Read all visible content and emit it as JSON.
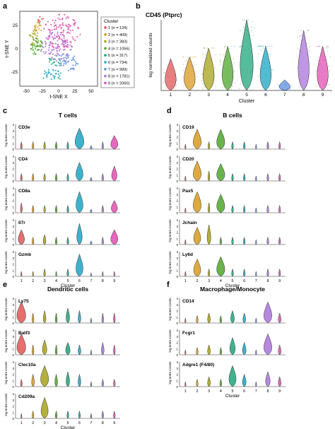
{
  "panel_letters": {
    "a": "a",
    "b": "b",
    "c": "c",
    "d": "d",
    "e": "e",
    "f": "f"
  },
  "colors": [
    "#e05555",
    "#d99a1e",
    "#a7a21a",
    "#4ea72c",
    "#1ea57a",
    "#1aa6c4",
    "#5b8fe0",
    "#a974d8",
    "#e14fb3"
  ],
  "chart_data": [
    {
      "type": "scatter",
      "panel": "a",
      "xlabel": "t-SNE X",
      "ylabel": "t-SNE Y",
      "xticks": [
        "-50",
        "-25",
        "0",
        "25",
        "50"
      ],
      "yticks": [
        "25",
        "0",
        "-25"
      ],
      "legend": {
        "title": "Cluster",
        "placement": "right",
        "entries": [
          "1 (n = 124)",
          "2 (n = 409)",
          "3 (n = 383)",
          "4 (n = 1056)",
          "5 (n = 317)",
          "6 (n = 734)",
          "7 (n = 999)",
          "8 (n = 1781)",
          "9 (n = 2060)"
        ]
      },
      "clusters": [
        {
          "name": "1",
          "cx": -28,
          "cy": 30,
          "sx": 3,
          "sy": 3,
          "n": 8
        },
        {
          "name": "2",
          "cx": -33,
          "cy": 22,
          "sx": 4,
          "sy": 4,
          "n": 18
        },
        {
          "name": "3",
          "cx": -38,
          "cy": 12,
          "sx": 5,
          "sy": 5,
          "n": 18
        },
        {
          "name": "4",
          "cx": -34,
          "cy": 2,
          "sx": 6,
          "sy": 6,
          "n": 40
        },
        {
          "name": "5",
          "cx": -5,
          "cy": -12,
          "sx": 6,
          "sy": 4,
          "n": 18
        },
        {
          "name": "6",
          "cx": -10,
          "cy": -28,
          "sx": 10,
          "sy": 4,
          "n": 30
        },
        {
          "name": "7",
          "cx": 15,
          "cy": -14,
          "sx": 10,
          "sy": 6,
          "n": 40
        },
        {
          "name": "8",
          "cx": -3,
          "cy": 2,
          "sx": 15,
          "sy": 10,
          "n": 90
        },
        {
          "name": "9",
          "cx": 5,
          "cy": 18,
          "sx": 18,
          "sy": 12,
          "n": 110
        }
      ]
    },
    {
      "type": "violin",
      "panel": "b",
      "title": "CD45 (Ptprc)",
      "xlabel": "Cluster",
      "ylabel": "log normalized counts",
      "ylim": [
        0,
        4
      ],
      "categories": [
        "1",
        "2",
        "3",
        "4",
        "5",
        "6",
        "7",
        "8",
        "9"
      ],
      "series": [
        {
          "medians": [
            0.3,
            1.2,
            1.4,
            1.3,
            2.0,
            2.0,
            0.1,
            1.8,
            1.6
          ],
          "max": [
            1.8,
            1.9,
            2.4,
            2.5,
            4.0,
            2.5,
            0.6,
            3.4,
            2.5
          ]
        }
      ]
    },
    {
      "type": "violin-stack",
      "panel": "c",
      "title": "T cells",
      "xlabel": "Cluster",
      "ylabel": "log norm counts",
      "yticks": [
        "0",
        "1",
        "2",
        "3",
        "4"
      ],
      "categories": [
        "1",
        "2",
        "3",
        "4",
        "5",
        "6",
        "7",
        "8",
        "9"
      ],
      "genes": [
        {
          "name": "CD3e",
          "heights": [
            0.3,
            0.3,
            0.3,
            0.3,
            0.3,
            0.85,
            0.15,
            0.3,
            0.55
          ],
          "widths": [
            0.2,
            0.2,
            0.2,
            0.2,
            0.2,
            1.0,
            0.2,
            0.2,
            0.8
          ]
        },
        {
          "name": "CD4",
          "heights": [
            0.3,
            0.3,
            0.3,
            0.3,
            0.3,
            0.75,
            0.15,
            0.3,
            0.6
          ],
          "widths": [
            0.2,
            0.2,
            0.2,
            0.2,
            0.2,
            0.8,
            0.2,
            0.2,
            0.6
          ]
        },
        {
          "name": "CD8a",
          "heights": [
            0.4,
            0.3,
            0.3,
            0.3,
            0.3,
            0.85,
            0.15,
            0.3,
            0.5
          ],
          "widths": [
            0.2,
            0.2,
            0.2,
            0.2,
            0.2,
            0.8,
            0.2,
            0.2,
            0.7
          ]
        },
        {
          "name": "Il7r",
          "heights": [
            0.6,
            0.3,
            0.4,
            0.3,
            0.3,
            0.85,
            0.15,
            0.3,
            0.6
          ],
          "widths": [
            0.7,
            0.2,
            0.3,
            0.2,
            0.2,
            0.6,
            0.2,
            0.2,
            0.8
          ]
        },
        {
          "name": "Gzmb",
          "heights": [
            0.2,
            0.2,
            0.3,
            0.2,
            0.3,
            0.9,
            0.15,
            0.2,
            0.2
          ],
          "widths": [
            0.1,
            0.1,
            0.2,
            0.1,
            0.2,
            0.8,
            0.1,
            0.1,
            0.1
          ]
        }
      ]
    },
    {
      "type": "violin-stack",
      "panel": "d",
      "title": "B cells",
      "xlabel": "Cluster",
      "ylabel": "log norm counts",
      "yticks": [
        "0",
        "1",
        "2",
        "3",
        "4"
      ],
      "categories": [
        "1",
        "2",
        "3",
        "4",
        "5",
        "6",
        "7",
        "8",
        "9"
      ],
      "genes": [
        {
          "name": "CD19",
          "heights": [
            0.2,
            0.8,
            0.3,
            0.8,
            0.3,
            0.3,
            0.2,
            0.3,
            0.3
          ],
          "widths": [
            0.1,
            0.9,
            0.2,
            0.9,
            0.2,
            0.2,
            0.1,
            0.2,
            0.2
          ]
        },
        {
          "name": "CD20",
          "heights": [
            0.2,
            0.8,
            0.4,
            0.7,
            0.3,
            0.3,
            0.2,
            0.3,
            0.3
          ],
          "widths": [
            0.1,
            0.9,
            0.2,
            0.9,
            0.2,
            0.2,
            0.1,
            0.2,
            0.2
          ]
        },
        {
          "name": "Pax5",
          "heights": [
            0.2,
            0.85,
            0.4,
            0.75,
            0.3,
            0.3,
            0.2,
            0.3,
            0.3
          ],
          "widths": [
            0.1,
            0.9,
            0.2,
            0.9,
            0.2,
            0.2,
            0.1,
            0.2,
            0.2
          ]
        },
        {
          "name": "Jchain",
          "heights": [
            0.2,
            0.7,
            0.8,
            0.3,
            0.3,
            0.3,
            0.2,
            0.3,
            0.3
          ],
          "widths": [
            0.1,
            0.8,
            0.4,
            0.2,
            0.2,
            0.2,
            0.1,
            0.2,
            0.2
          ]
        },
        {
          "name": "Ly6d",
          "heights": [
            0.2,
            0.7,
            0.3,
            0.8,
            0.3,
            0.3,
            0.2,
            0.3,
            0.3
          ],
          "widths": [
            0.1,
            0.8,
            0.2,
            0.9,
            0.2,
            0.2,
            0.1,
            0.2,
            0.2
          ]
        }
      ]
    },
    {
      "type": "violin-stack",
      "panel": "e",
      "title": "Dendritic cells",
      "xlabel": "Cluster",
      "ylabel": "log norm counts",
      "yticks": [
        "0",
        "1",
        "2",
        "3",
        "4"
      ],
      "categories": [
        "1",
        "2",
        "3",
        "4",
        "5",
        "6",
        "7",
        "8",
        "9"
      ],
      "genes": [
        {
          "name": "Ly75",
          "heights": [
            0.85,
            0.4,
            0.5,
            0.4,
            0.6,
            0.5,
            0.2,
            0.4,
            0.4
          ],
          "widths": [
            1.0,
            0.2,
            0.3,
            0.2,
            0.4,
            0.3,
            0.1,
            0.2,
            0.2
          ]
        },
        {
          "name": "Batf3",
          "heights": [
            0.85,
            0.4,
            0.6,
            0.4,
            0.5,
            0.4,
            0.2,
            0.5,
            0.4
          ],
          "widths": [
            1.0,
            0.2,
            0.5,
            0.2,
            0.5,
            0.3,
            0.1,
            0.3,
            0.2
          ]
        },
        {
          "name": "Clec10a",
          "heights": [
            0.3,
            0.5,
            0.85,
            0.5,
            0.6,
            0.5,
            0.2,
            0.3,
            0.3
          ],
          "widths": [
            0.2,
            0.3,
            0.9,
            0.3,
            0.4,
            0.3,
            0.1,
            0.2,
            0.2
          ]
        },
        {
          "name": "Cd209a",
          "heights": [
            0.2,
            0.3,
            0.85,
            0.3,
            0.3,
            0.3,
            0.2,
            0.3,
            0.3
          ],
          "widths": [
            0.1,
            0.2,
            0.8,
            0.2,
            0.2,
            0.2,
            0.1,
            0.2,
            0.2
          ]
        }
      ]
    },
    {
      "type": "violin-stack",
      "panel": "f",
      "title": "Macrophage/Monocyte",
      "xlabel": "Cluster",
      "ylabel": "log norm counts",
      "yticks": [
        "0",
        "1",
        "2",
        "3",
        "4"
      ],
      "categories": [
        "1",
        "2",
        "3",
        "4",
        "5",
        "6",
        "7",
        "8",
        "9"
      ],
      "genes": [
        {
          "name": "CD14",
          "heights": [
            0.2,
            0.3,
            0.4,
            0.3,
            0.5,
            0.4,
            0.2,
            0.85,
            0.4
          ],
          "widths": [
            0.1,
            0.2,
            0.3,
            0.2,
            0.4,
            0.3,
            0.1,
            0.9,
            0.3
          ]
        },
        {
          "name": "Fcgr1",
          "heights": [
            0.2,
            0.3,
            0.4,
            0.3,
            0.7,
            0.5,
            0.2,
            0.85,
            0.4
          ],
          "widths": [
            0.1,
            0.2,
            0.3,
            0.2,
            0.6,
            0.4,
            0.1,
            0.9,
            0.3
          ]
        },
        {
          "name": "Adgre1 (F4/80)",
          "heights": [
            0.2,
            0.3,
            0.4,
            0.3,
            0.85,
            0.5,
            0.2,
            0.6,
            0.4
          ],
          "widths": [
            0.1,
            0.2,
            0.3,
            0.2,
            0.8,
            0.4,
            0.1,
            0.5,
            0.3
          ]
        }
      ]
    }
  ]
}
